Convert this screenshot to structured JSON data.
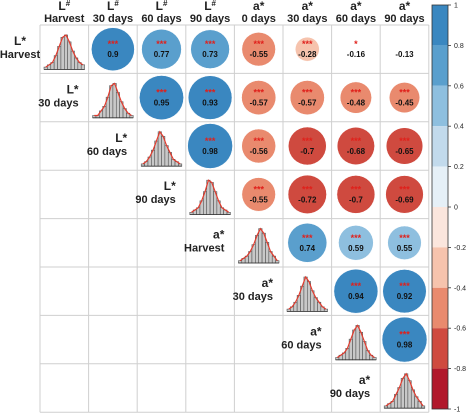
{
  "chart_data": {
    "type": "correlation-matrix",
    "variables": [
      {
        "line1": "L*",
        "line2": "Harvest"
      },
      {
        "line1": "L*",
        "line2": "30 days"
      },
      {
        "line1": "L*",
        "line2": "60 days"
      },
      {
        "line1": "L*",
        "line2": "90 days"
      },
      {
        "line1": "a*",
        "line2": "Harvest"
      },
      {
        "line1": "a*",
        "line2": "30 days"
      },
      {
        "line1": "a*",
        "line2": "60 days"
      },
      {
        "line1": "a*",
        "line2": "90 days"
      }
    ],
    "top_header": [
      {
        "line1": "L",
        "sup": "#",
        "line2": "Harvest"
      },
      {
        "line1": "L",
        "sup": "#",
        "line2": "30 days"
      },
      {
        "line1": "L",
        "sup": "#",
        "line2": "60 days"
      },
      {
        "line1": "L",
        "sup": "#",
        "line2": "90 days"
      },
      {
        "line1": "a*",
        "sup": "",
        "line2": "0 days"
      },
      {
        "line1": "a*",
        "sup": "",
        "line2": "30 days"
      },
      {
        "line1": "a*",
        "sup": "",
        "line2": "60 days"
      },
      {
        "line1": "a*",
        "sup": "",
        "line2": "90 days"
      }
    ],
    "correlations": [
      {
        "row": 0,
        "col": 1,
        "r": 0.9,
        "label": "0.9",
        "stars": "***"
      },
      {
        "row": 0,
        "col": 2,
        "r": 0.77,
        "label": "0.77",
        "stars": "***"
      },
      {
        "row": 0,
        "col": 3,
        "r": 0.73,
        "label": "0.73",
        "stars": "***"
      },
      {
        "row": 0,
        "col": 4,
        "r": -0.55,
        "label": "-0.55",
        "stars": "***"
      },
      {
        "row": 0,
        "col": 5,
        "r": -0.28,
        "label": "-0.28",
        "stars": "***"
      },
      {
        "row": 0,
        "col": 6,
        "r": -0.16,
        "label": "-0.16",
        "stars": "*"
      },
      {
        "row": 0,
        "col": 7,
        "r": -0.13,
        "label": "-0.13",
        "stars": ""
      },
      {
        "row": 1,
        "col": 2,
        "r": 0.95,
        "label": "0.95",
        "stars": "***"
      },
      {
        "row": 1,
        "col": 3,
        "r": 0.93,
        "label": "0.93",
        "stars": "***"
      },
      {
        "row": 1,
        "col": 4,
        "r": -0.57,
        "label": "-0.57",
        "stars": "***"
      },
      {
        "row": 1,
        "col": 5,
        "r": -0.57,
        "label": "-0.57",
        "stars": "***"
      },
      {
        "row": 1,
        "col": 6,
        "r": -0.48,
        "label": "-0.48",
        "stars": "***"
      },
      {
        "row": 1,
        "col": 7,
        "r": -0.45,
        "label": "-0.45",
        "stars": "***"
      },
      {
        "row": 2,
        "col": 3,
        "r": 0.98,
        "label": "0.98",
        "stars": "***"
      },
      {
        "row": 2,
        "col": 4,
        "r": -0.56,
        "label": "-0.56",
        "stars": "***"
      },
      {
        "row": 2,
        "col": 5,
        "r": -0.7,
        "label": "-0.7",
        "stars": "***"
      },
      {
        "row": 2,
        "col": 6,
        "r": -0.68,
        "label": "-0.68",
        "stars": "***"
      },
      {
        "row": 2,
        "col": 7,
        "r": -0.65,
        "label": "-0.65",
        "stars": "***"
      },
      {
        "row": 3,
        "col": 4,
        "r": -0.55,
        "label": "-0.55",
        "stars": "***"
      },
      {
        "row": 3,
        "col": 5,
        "r": -0.72,
        "label": "-0.72",
        "stars": "***"
      },
      {
        "row": 3,
        "col": 6,
        "r": -0.7,
        "label": "-0.7",
        "stars": "***"
      },
      {
        "row": 3,
        "col": 7,
        "r": -0.69,
        "label": "-0.69",
        "stars": "***"
      },
      {
        "row": 4,
        "col": 5,
        "r": 0.74,
        "label": "0.74",
        "stars": "***"
      },
      {
        "row": 4,
        "col": 6,
        "r": 0.59,
        "label": "0.59",
        "stars": "***"
      },
      {
        "row": 4,
        "col": 7,
        "r": 0.55,
        "label": "0.55",
        "stars": "***"
      },
      {
        "row": 5,
        "col": 6,
        "r": 0.94,
        "label": "0.94",
        "stars": "***"
      },
      {
        "row": 5,
        "col": 7,
        "r": 0.92,
        "label": "0.92",
        "stars": "***"
      },
      {
        "row": 6,
        "col": 7,
        "r": 0.98,
        "label": "0.98",
        "stars": "***"
      }
    ],
    "histogram_shapes": [
      [
        1,
        2,
        3,
        6,
        10,
        14,
        15,
        12,
        8,
        5,
        3,
        2
      ],
      [
        1,
        1,
        3,
        5,
        9,
        14,
        15,
        11,
        7,
        4,
        2,
        1
      ],
      [
        1,
        2,
        4,
        7,
        11,
        15,
        13,
        9,
        6,
        3,
        2,
        1
      ],
      [
        1,
        2,
        3,
        6,
        10,
        15,
        14,
        10,
        6,
        3,
        2,
        1
      ],
      [
        1,
        2,
        3,
        5,
        8,
        12,
        15,
        13,
        9,
        5,
        3,
        1
      ],
      [
        1,
        2,
        4,
        7,
        11,
        15,
        13,
        9,
        6,
        4,
        2,
        1
      ],
      [
        1,
        2,
        3,
        5,
        9,
        13,
        15,
        12,
        8,
        4,
        2,
        1
      ],
      [
        1,
        2,
        3,
        6,
        9,
        13,
        15,
        12,
        8,
        5,
        3,
        1
      ]
    ],
    "colorbar": {
      "range": [
        -1,
        1
      ],
      "ticks": [
        "1",
        "0.8",
        "0.6",
        "0.4",
        "0.2",
        "0",
        "-0.2",
        "-0.4",
        "-0.6",
        "-0.8",
        "-1"
      ],
      "bins": [
        {
          "from": 0.8,
          "to": 1.0,
          "color": "#3a87c0"
        },
        {
          "from": 0.6,
          "to": 0.8,
          "color": "#5a9fcd"
        },
        {
          "from": 0.4,
          "to": 0.6,
          "color": "#8ebfdf"
        },
        {
          "from": 0.2,
          "to": 0.4,
          "color": "#c2daec"
        },
        {
          "from": 0.0,
          "to": 0.2,
          "color": "#e6f0f7"
        },
        {
          "from": -0.2,
          "to": 0.0,
          "color": "#fbe6dd"
        },
        {
          "from": -0.4,
          "to": -0.2,
          "color": "#f6c3ad"
        },
        {
          "from": -0.6,
          "to": -0.4,
          "color": "#e98a6e"
        },
        {
          "from": -0.8,
          "to": -0.6,
          "color": "#cf4a3f"
        },
        {
          "from": -1.0,
          "to": -0.8,
          "color": "#b1182b"
        }
      ]
    },
    "colors": {
      "hist_bar": "#c8c8c8",
      "hist_line": "#e23b2e",
      "grid": "#cfcfcf",
      "star": "#e0201b"
    }
  }
}
